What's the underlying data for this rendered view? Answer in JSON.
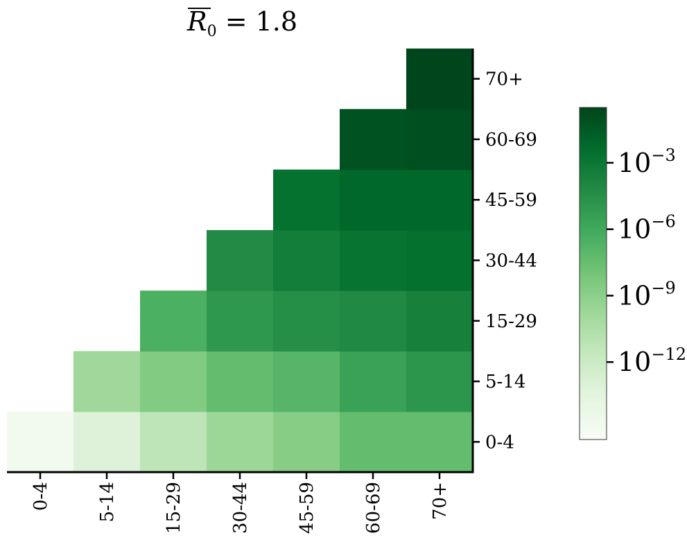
{
  "chart_data": {
    "type": "heatmap",
    "title": "R̄₀ = 1.8",
    "title_parts": {
      "symbol": "R",
      "sub": "0",
      "rest": " = 1.8"
    },
    "x_categories": [
      "0-4",
      "5-14",
      "15-29",
      "30-44",
      "45-59",
      "60-69",
      "70+"
    ],
    "y_categories": [
      "0-4",
      "5-14",
      "15-29",
      "30-44",
      "45-59",
      "60-69",
      "70+"
    ],
    "yaxis_side": "right",
    "mask": "upper-triangle (x >= y); cells with x < y are blank",
    "scale": "log",
    "colormap": "Greens",
    "log10_values": [
      [
        -15.0,
        -13.2,
        -11.3,
        -9.7,
        -8.8,
        -7.4,
        -7.4
      ],
      [
        null,
        -9.8,
        -8.6,
        -7.4,
        -6.9,
        -5.6,
        -4.9
      ],
      [
        null,
        null,
        -6.5,
        -5.0,
        -4.4,
        -4.1,
        -3.6
      ],
      [
        null,
        null,
        null,
        -4.2,
        -3.4,
        -2.8,
        -2.6
      ],
      [
        null,
        null,
        null,
        null,
        -2.7,
        -2.2,
        -2.2
      ],
      [
        null,
        null,
        null,
        null,
        null,
        -1.2,
        -1.0
      ],
      [
        null,
        null,
        null,
        null,
        null,
        null,
        -0.6
      ]
    ],
    "colorbar": {
      "orientation": "vertical",
      "log_range": [
        -15.5,
        -0.5
      ],
      "ticks": [
        {
          "base": "10",
          "exp": "−3",
          "log": -3
        },
        {
          "base": "10",
          "exp": "−6",
          "log": -6
        },
        {
          "base": "10",
          "exp": "−9",
          "log": -9
        },
        {
          "base": "10",
          "exp": "−12",
          "log": -12
        }
      ]
    }
  }
}
